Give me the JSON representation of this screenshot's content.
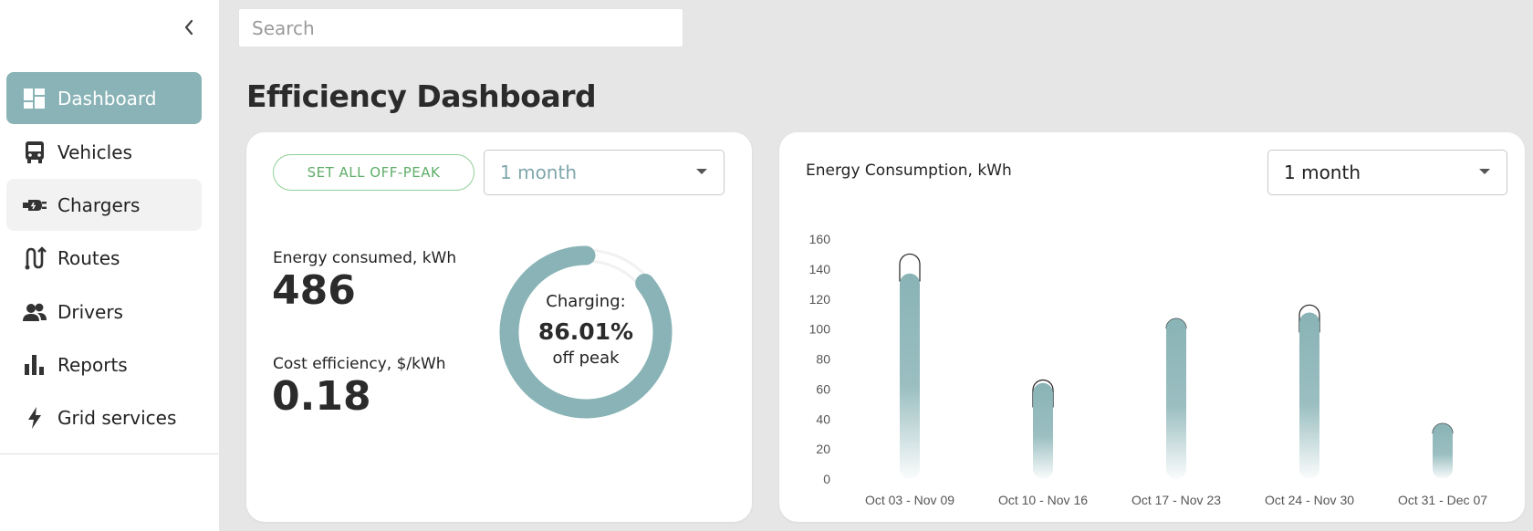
{
  "sidebar": {
    "collapse_icon": "chevron-left-icon",
    "items": [
      {
        "label": "Dashboard",
        "icon": "dashboard-icon"
      },
      {
        "label": "Vehicles",
        "icon": "bus-icon"
      },
      {
        "label": "Chargers",
        "icon": "charger-plug-icon"
      },
      {
        "label": "Routes",
        "icon": "route-icon"
      },
      {
        "label": "Drivers",
        "icon": "people-icon"
      },
      {
        "label": "Reports",
        "icon": "bar-chart-icon"
      },
      {
        "label": "Grid services",
        "icon": "lightning-icon"
      }
    ],
    "active_item": "Dashboard"
  },
  "search": {
    "placeholder": "Search",
    "value": ""
  },
  "page": {
    "title": "Efficiency Dashboard"
  },
  "efficiency_card": {
    "offpeak_button": "SET ALL OFF-PEAK",
    "period_select": "1 month",
    "energy_label": "Energy consumed, kWh",
    "energy_value": "486",
    "cost_label": "Cost efficiency, $/kWh",
    "cost_value": "0.18",
    "donut": {
      "label": "Charging:",
      "percent_text": "86.01%",
      "sublabel": "off peak",
      "fraction": 0.8601
    }
  },
  "chart_card": {
    "title": "Energy Consumption, kWh",
    "period_select": "1 month"
  },
  "colors": {
    "accent": "#89b3b6",
    "offpeak_green": "#5fae68",
    "background": "#e6e6e6"
  },
  "chart_data": {
    "type": "bar",
    "title": "Energy Consumption, kWh",
    "categories": [
      "Oct 03 - Nov 09",
      "Oct 10 - Nov 16",
      "Oct 17 - Nov 23",
      "Oct 24 - Nov 30",
      "Oct 31 - Dec 07"
    ],
    "series": [
      {
        "values": [
          137,
          64,
          107,
          111,
          37
        ]
      },
      {
        "values": [
          150,
          66,
          107,
          116,
          37
        ]
      }
    ],
    "ylim": [
      0,
      160
    ],
    "yticks": [
      0,
      20,
      40,
      60,
      80,
      100,
      120,
      140,
      160
    ],
    "grid": false
  }
}
